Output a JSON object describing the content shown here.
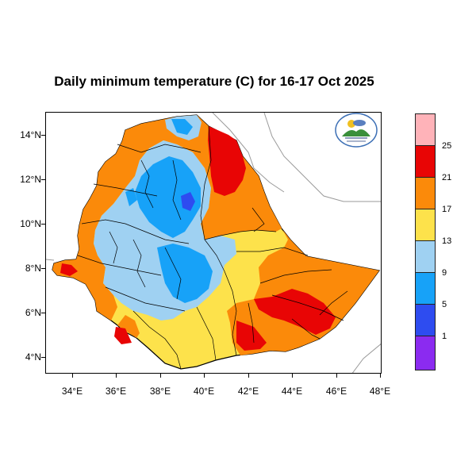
{
  "title": "Daily minimum temperature (C) for 16-17 Oct 2025",
  "map": {
    "latitude_labels": [
      "14°N",
      "12°N",
      "10°N",
      "8°N",
      "6°N",
      "4°N"
    ],
    "longitude_labels": [
      "34°E",
      "36°E",
      "38°E",
      "40°E",
      "42°E",
      "44°E",
      "46°E",
      "48°E"
    ],
    "extent": {
      "lon": [
        33,
        48.3
      ],
      "lat": [
        3.2,
        15
      ]
    }
  },
  "colorbar": {
    "labels": [
      "1",
      "5",
      "9",
      "13",
      "17",
      "21",
      "25"
    ],
    "colors": [
      "#8b2bf0",
      "#2e4cf0",
      "#17a2f8",
      "#9fd1f2",
      "#fde24b",
      "#fb8a0a",
      "#e80505",
      "#ffb3b9"
    ]
  },
  "logo": {
    "icon": "ethiopian-meteorology-institute-emblem"
  }
}
